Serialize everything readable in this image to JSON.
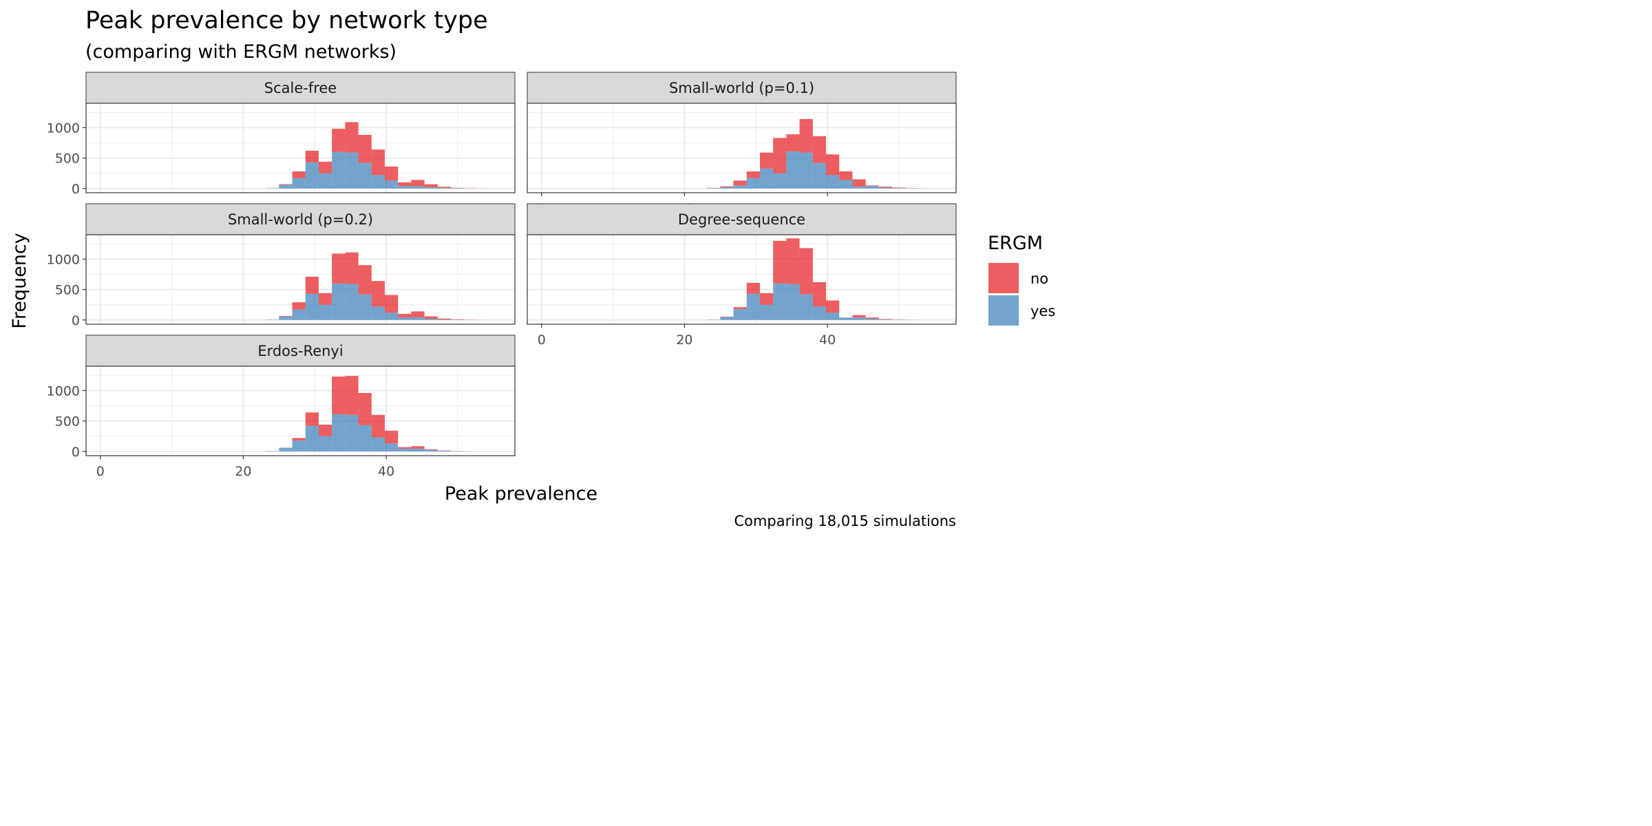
{
  "chart_data": {
    "type": "bar",
    "title": "Peak prevalence by network type",
    "subtitle": "(comparing with ERGM networks)",
    "xlabel": "Peak prevalence",
    "ylabel": "Frequency",
    "caption": "Comparing 18,015 simulations",
    "x_ticks": [
      0,
      20,
      40
    ],
    "y_ticks": [
      0,
      500,
      1000
    ],
    "xlim": [
      -2,
      58
    ],
    "ylim": [
      -70,
      1400
    ],
    "bin_width": 1.85,
    "bin_start": 23.15,
    "stacked": true,
    "grid": true,
    "legend": {
      "title": "ERGM",
      "position": "right",
      "entries": [
        {
          "label": "no",
          "color": "#E41A1C"
        },
        {
          "label": "yes",
          "color": "#377EB8"
        }
      ]
    },
    "series_colors": {
      "no": "#E41A1C",
      "yes": "#377EB8"
    },
    "panels": [
      {
        "label": "Scale-free",
        "yes": [
          5,
          60,
          170,
          430,
          250,
          600,
          590,
          420,
          220,
          130,
          40,
          40,
          20,
          8,
          3,
          1,
          0
        ],
        "no": [
          0,
          10,
          110,
          190,
          190,
          380,
          500,
          460,
          420,
          230,
          60,
          100,
          50,
          20,
          7,
          3,
          1
        ]
      },
      {
        "label": "Small-world (p=0.1)",
        "yes": [
          5,
          20,
          50,
          170,
          330,
          250,
          610,
          590,
          420,
          220,
          140,
          30,
          40,
          15,
          5,
          1,
          0
        ],
        "no": [
          5,
          15,
          80,
          110,
          260,
          580,
          280,
          550,
          440,
          340,
          140,
          120,
          10,
          15,
          10,
          4,
          1
        ]
      },
      {
        "label": "Small-world (p=0.2)",
        "yes": [
          5,
          55,
          170,
          430,
          250,
          600,
          590,
          420,
          220,
          120,
          40,
          40,
          20,
          8,
          3,
          1,
          0
        ],
        "no": [
          0,
          10,
          120,
          280,
          190,
          490,
          520,
          480,
          420,
          290,
          60,
          100,
          40,
          15,
          7,
          3,
          1
        ]
      },
      {
        "label": "Degree-sequence",
        "yes": [
          5,
          50,
          180,
          430,
          250,
          600,
          590,
          420,
          220,
          120,
          40,
          40,
          20,
          8,
          3,
          1,
          0
        ],
        "no": [
          0,
          5,
          30,
          180,
          190,
          700,
          750,
          760,
          400,
          200,
          0,
          40,
          20,
          7,
          3,
          1,
          0
        ]
      },
      {
        "label": "Erdos-Renyi",
        "yes": [
          5,
          55,
          180,
          420,
          250,
          610,
          600,
          430,
          230,
          130,
          45,
          45,
          25,
          10,
          3,
          1,
          0
        ],
        "no": [
          0,
          5,
          40,
          220,
          190,
          620,
          640,
          530,
          370,
          210,
          25,
          40,
          10,
          5,
          2,
          0,
          0
        ]
      }
    ]
  }
}
